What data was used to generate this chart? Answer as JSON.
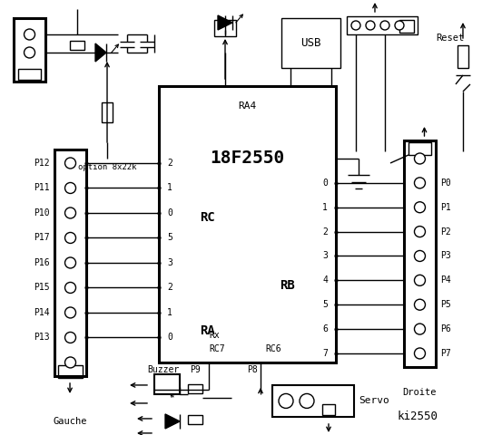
{
  "bg_color": "#ffffff",
  "title": "ki2550",
  "chip_label": "18F2550",
  "chip_sublabel": "RA4",
  "left_connector_labels": [
    "P12",
    "P11",
    "P10",
    "P17",
    "P16",
    "P15",
    "P14",
    "P13"
  ],
  "right_connector_labels": [
    "P0",
    "P1",
    "P2",
    "P3",
    "P4",
    "P5",
    "P6",
    "P7"
  ],
  "rc_pins": [
    "2",
    "1",
    "0",
    "5",
    "3",
    "2",
    "1",
    "0"
  ],
  "rb_pins": [
    "0",
    "1",
    "2",
    "3",
    "4",
    "5",
    "6",
    "7"
  ],
  "option_text": "option 8x22k",
  "reset_text": "Reset",
  "usb_text": "USB",
  "gauche_text": "Gauche",
  "droite_text": "Droite",
  "buzzer_text": "Buzzer",
  "p9_text": "P9",
  "p8_text": "P8",
  "servo_text": "Servo",
  "rx_text": "Rx",
  "rc7_text": "RC7",
  "rc6_text": "RC6",
  "rc_text": "RC",
  "ra_text": "RA",
  "rb_text": "RB"
}
